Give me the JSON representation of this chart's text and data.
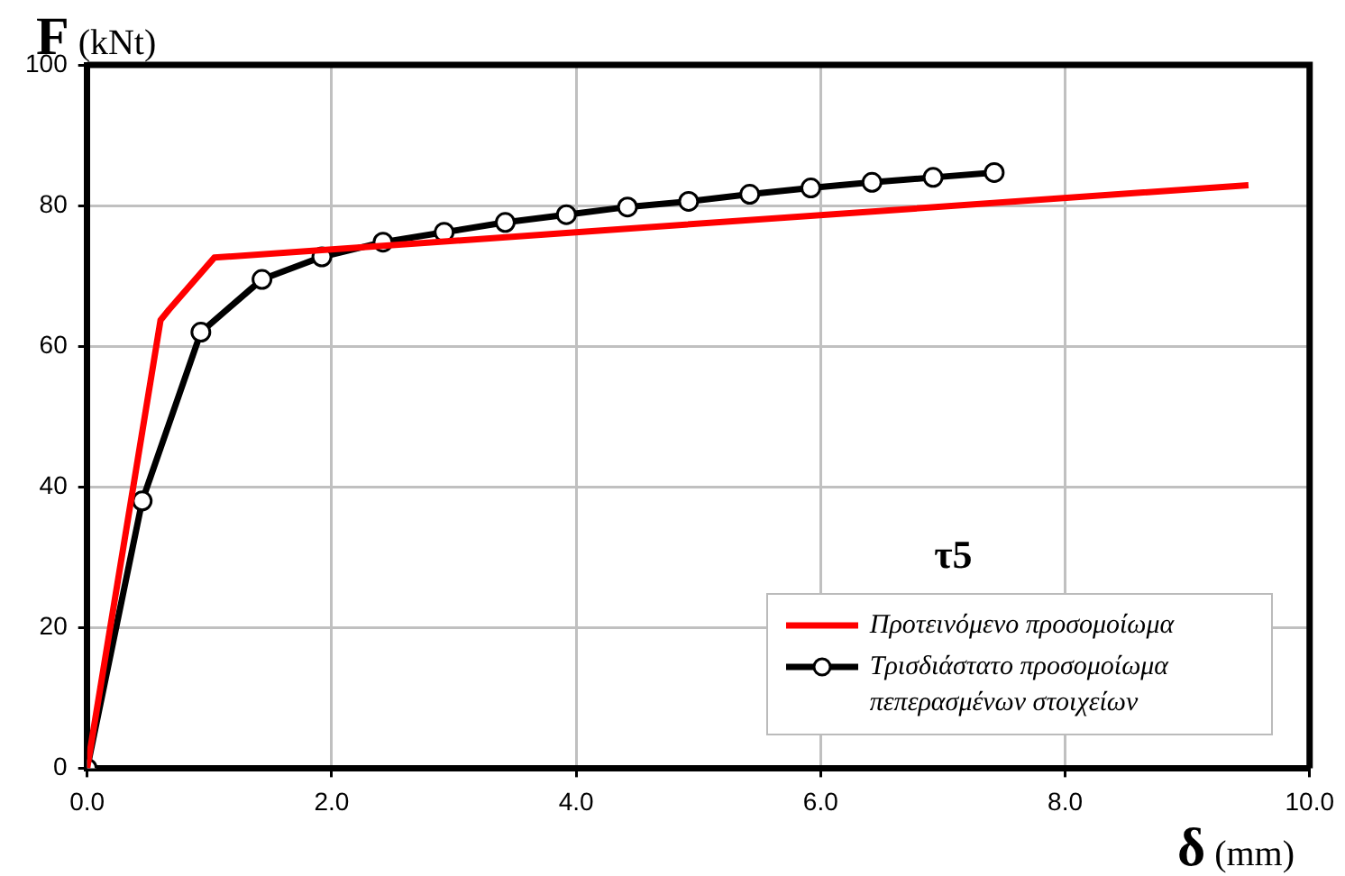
{
  "chart_data": {
    "type": "line",
    "xlabel": "δ (mm)",
    "ylabel": "F (kNt)",
    "annotations": [
      "τ5"
    ],
    "xlim": [
      0,
      10
    ],
    "ylim": [
      0,
      100
    ],
    "xticks": [
      {
        "value": 0,
        "label": "0.0"
      },
      {
        "value": 2,
        "label": "2.0"
      },
      {
        "value": 4,
        "label": "4.0"
      },
      {
        "value": 6,
        "label": "6.0"
      },
      {
        "value": 8,
        "label": "8.0"
      },
      {
        "value": 10,
        "label": "10.0"
      }
    ],
    "yticks": [
      0,
      20,
      40,
      60,
      80,
      100
    ],
    "grid": true,
    "legend": "bottom right",
    "series": [
      {
        "name": "Προτεινόμενο προσομοίωμα",
        "color": "#ff0000",
        "marker": "none",
        "x": [
          0,
          0.6,
          0.67,
          1.04,
          9.5
        ],
        "values": [
          0,
          63.7,
          65.2,
          72.6,
          82.9
        ]
      },
      {
        "name": "Τρισδιάστατο προσομοίωμα πεπερασμένων στοιχείων",
        "color": "#000000",
        "marker": "circle",
        "x": [
          0,
          0.45,
          0.93,
          1.43,
          1.92,
          2.42,
          2.92,
          3.42,
          3.92,
          4.42,
          4.92,
          5.42,
          5.92,
          6.42,
          6.92,
          7.42
        ],
        "values": [
          0,
          38,
          62,
          69.5,
          72.7,
          74.8,
          76.2,
          77.6,
          78.7,
          79.8,
          80.6,
          81.6,
          82.5,
          83.3,
          84,
          84.7
        ]
      }
    ]
  }
}
